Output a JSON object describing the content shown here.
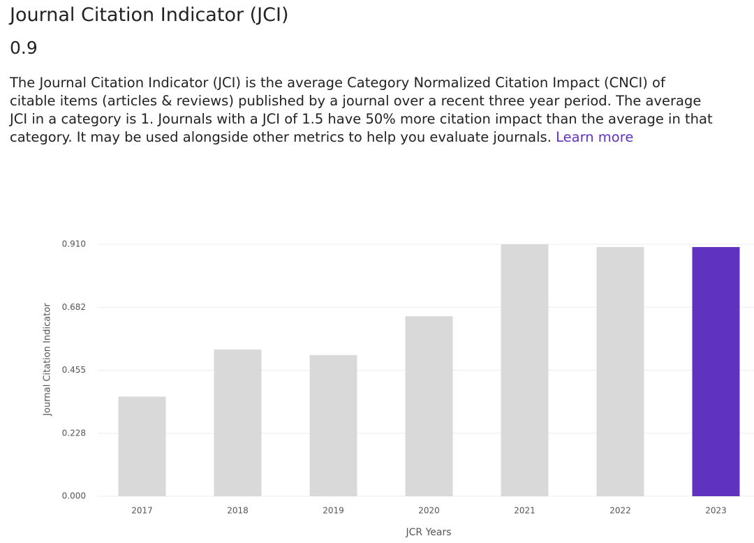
{
  "header": {
    "title": "Journal Citation Indicator (JCI)",
    "value": "0.9",
    "description": "The Journal Citation Indicator (JCI) is the average Category Normalized Citation Impact (CNCI) of citable items (articles & reviews) published by a journal over a recent three year period. The average JCI in a category is 1. Journals with a JCI of 1.5 have 50% more citation impact than the average in that category. It may be used alongside other metrics to help you evaluate journals.",
    "link": "Learn more"
  },
  "chart_data": {
    "type": "bar",
    "x_label": "JCR Years",
    "y_label": "Journal Citation Indicator",
    "categories": [
      "2017",
      "2018",
      "2019",
      "2020",
      "2021",
      "2022",
      "2023"
    ],
    "values": [
      0.36,
      0.53,
      0.51,
      0.65,
      0.91,
      0.9,
      0.9
    ],
    "colors": [
      "#d9d9d9",
      "#d9d9d9",
      "#d9d9d9",
      "#d9d9d9",
      "#d9d9d9",
      "#d9d9d9",
      "#5f33bf"
    ],
    "ylim": [
      0,
      0.91
    ],
    "yticks": [
      {
        "value": 0,
        "label": "0.000"
      },
      {
        "value": 0.2275,
        "label": "0.228"
      },
      {
        "value": 0.455,
        "label": "0.455"
      },
      {
        "value": 0.6825,
        "label": "0.682"
      },
      {
        "value": 0.91,
        "label": "0.910"
      }
    ],
    "grid": true
  }
}
